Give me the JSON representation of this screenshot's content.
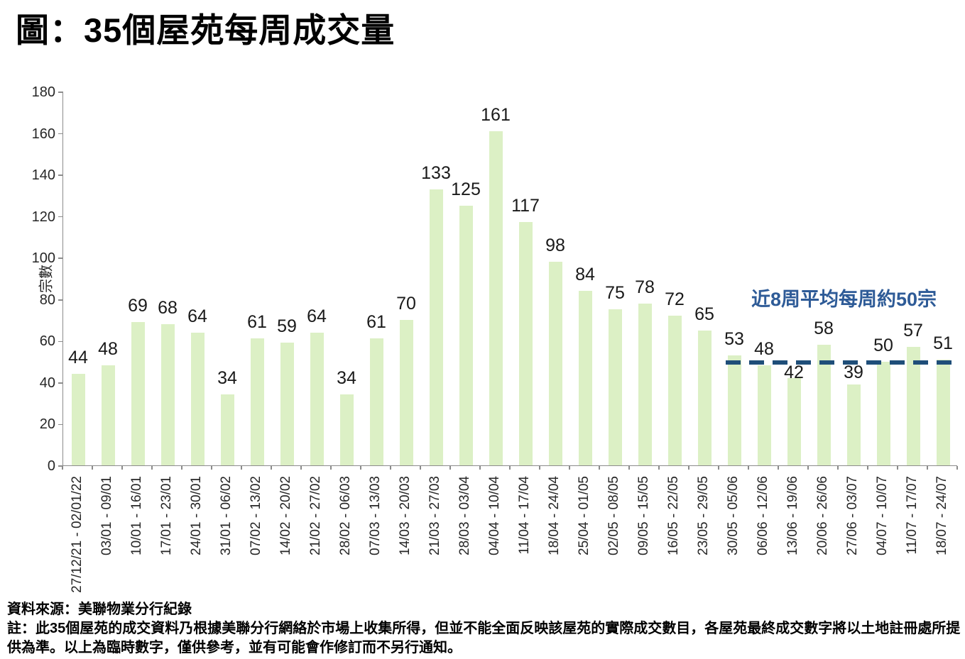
{
  "title": "圖：35個屋苑每周成交量",
  "chart_data": {
    "type": "bar",
    "title": "圖：35個屋苑每周成交量",
    "xlabel": "",
    "ylabel": "宗數",
    "ylim": [
      0,
      180
    ],
    "ytick_step": 20,
    "grid": false,
    "data_labels": true,
    "bar_color": "#dcf0c5",
    "categories": [
      "27/12/21 - 02/01/22",
      "03/01 - 09/01",
      "10/01 - 16/01",
      "17/01 - 23/01",
      "24/01 - 30/01",
      "31/01 - 06/02",
      "07/02 - 13/02",
      "14/02 - 20/02",
      "21/02 - 27/02",
      "28/02 - 06/03",
      "07/03 - 13/03",
      "14/03 - 20/03",
      "21/03 - 27/03",
      "28/03 - 03/04",
      "04/04 - 10/04",
      "11/04 - 17/04",
      "18/04 - 24/04",
      "25/04 - 01/05",
      "02/05 - 08/05",
      "09/05 - 15/05",
      "16/05 - 22/05",
      "23/05 - 29/05",
      "30/05 - 05/06",
      "06/06 - 12/06",
      "13/06 - 19/06",
      "20/06 - 26/06",
      "27/06 - 03/07",
      "04/07 - 10/07",
      "11/07 - 17/07",
      "18/07 - 24/07"
    ],
    "values": [
      44,
      48,
      69,
      68,
      64,
      34,
      61,
      59,
      64,
      34,
      61,
      70,
      133,
      125,
      161,
      117,
      98,
      84,
      75,
      78,
      72,
      65,
      53,
      48,
      42,
      58,
      39,
      50,
      57,
      51
    ],
    "average_line": {
      "value": 50,
      "span_last_n_bars": 8,
      "style": "dashed",
      "color": "#1f4e79"
    },
    "annotation": {
      "text": "近8周平均每周約50宗",
      "color": "#2e5b97"
    }
  },
  "footer": {
    "source": "資料來源：美聯物業分行紀錄",
    "note": "註：此35個屋苑的成交資料乃根據美聯分行網絡於市場上收集所得，但並不能全面反映該屋苑的實際成交數目，各屋苑最終成交數字將以土地註冊處所提供為準。以上為臨時數字，僅供參考，並有可能會作修訂而不另行通知。"
  }
}
